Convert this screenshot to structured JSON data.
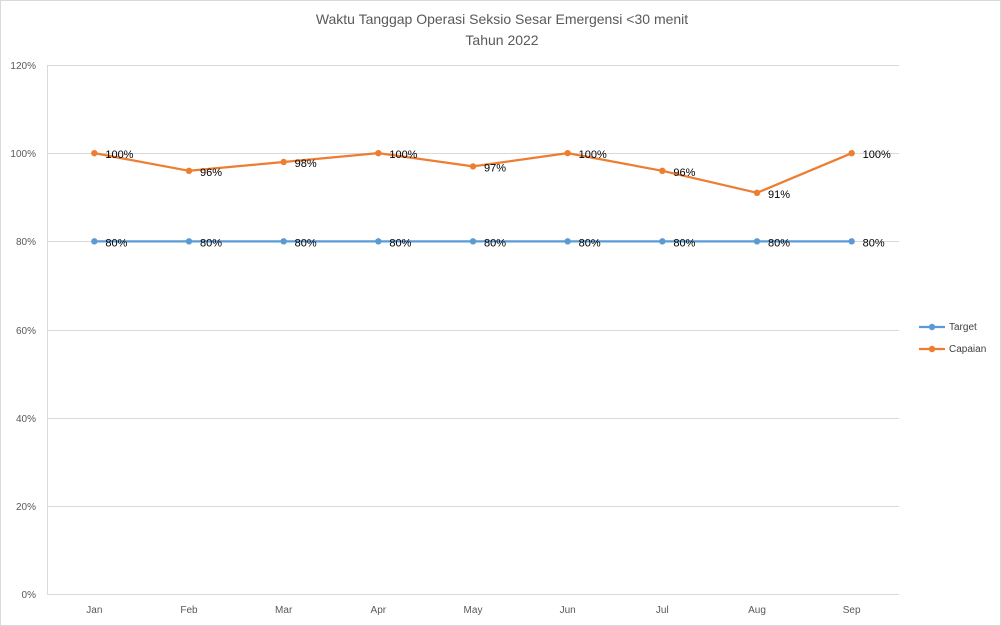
{
  "chart_data": {
    "type": "line",
    "title": "Waktu  Tanggap Operasi Seksio Sesar Emergensi <30 menit",
    "subtitle": "Tahun 2022",
    "categories": [
      "Jan",
      "Feb",
      "Mar",
      "Apr",
      "May",
      "Jun",
      "Jul",
      "Aug",
      "Sep"
    ],
    "ylim": [
      0,
      120
    ],
    "yticks": [
      0,
      20,
      40,
      60,
      80,
      100,
      120
    ],
    "ytick_labels": [
      "0%",
      "20%",
      "40%",
      "60%",
      "80%",
      "100%",
      "120%"
    ],
    "xlabel": "",
    "ylabel": "",
    "grid": true,
    "legend_position": "right",
    "series": [
      {
        "name": "Target",
        "color": "#5B9BD5",
        "values": [
          80,
          80,
          80,
          80,
          80,
          80,
          80,
          80,
          80
        ],
        "labels": [
          "80%",
          "80%",
          "80%",
          "80%",
          "80%",
          "80%",
          "80%",
          "80%",
          "80%"
        ]
      },
      {
        "name": "Capaian",
        "color": "#ED7D31",
        "values": [
          100,
          96,
          98,
          100,
          97,
          100,
          96,
          91,
          100
        ],
        "labels": [
          "100%",
          "96%",
          "98%",
          "100%",
          "97%",
          "100%",
          "96%",
          "91%",
          "100%"
        ]
      }
    ]
  }
}
